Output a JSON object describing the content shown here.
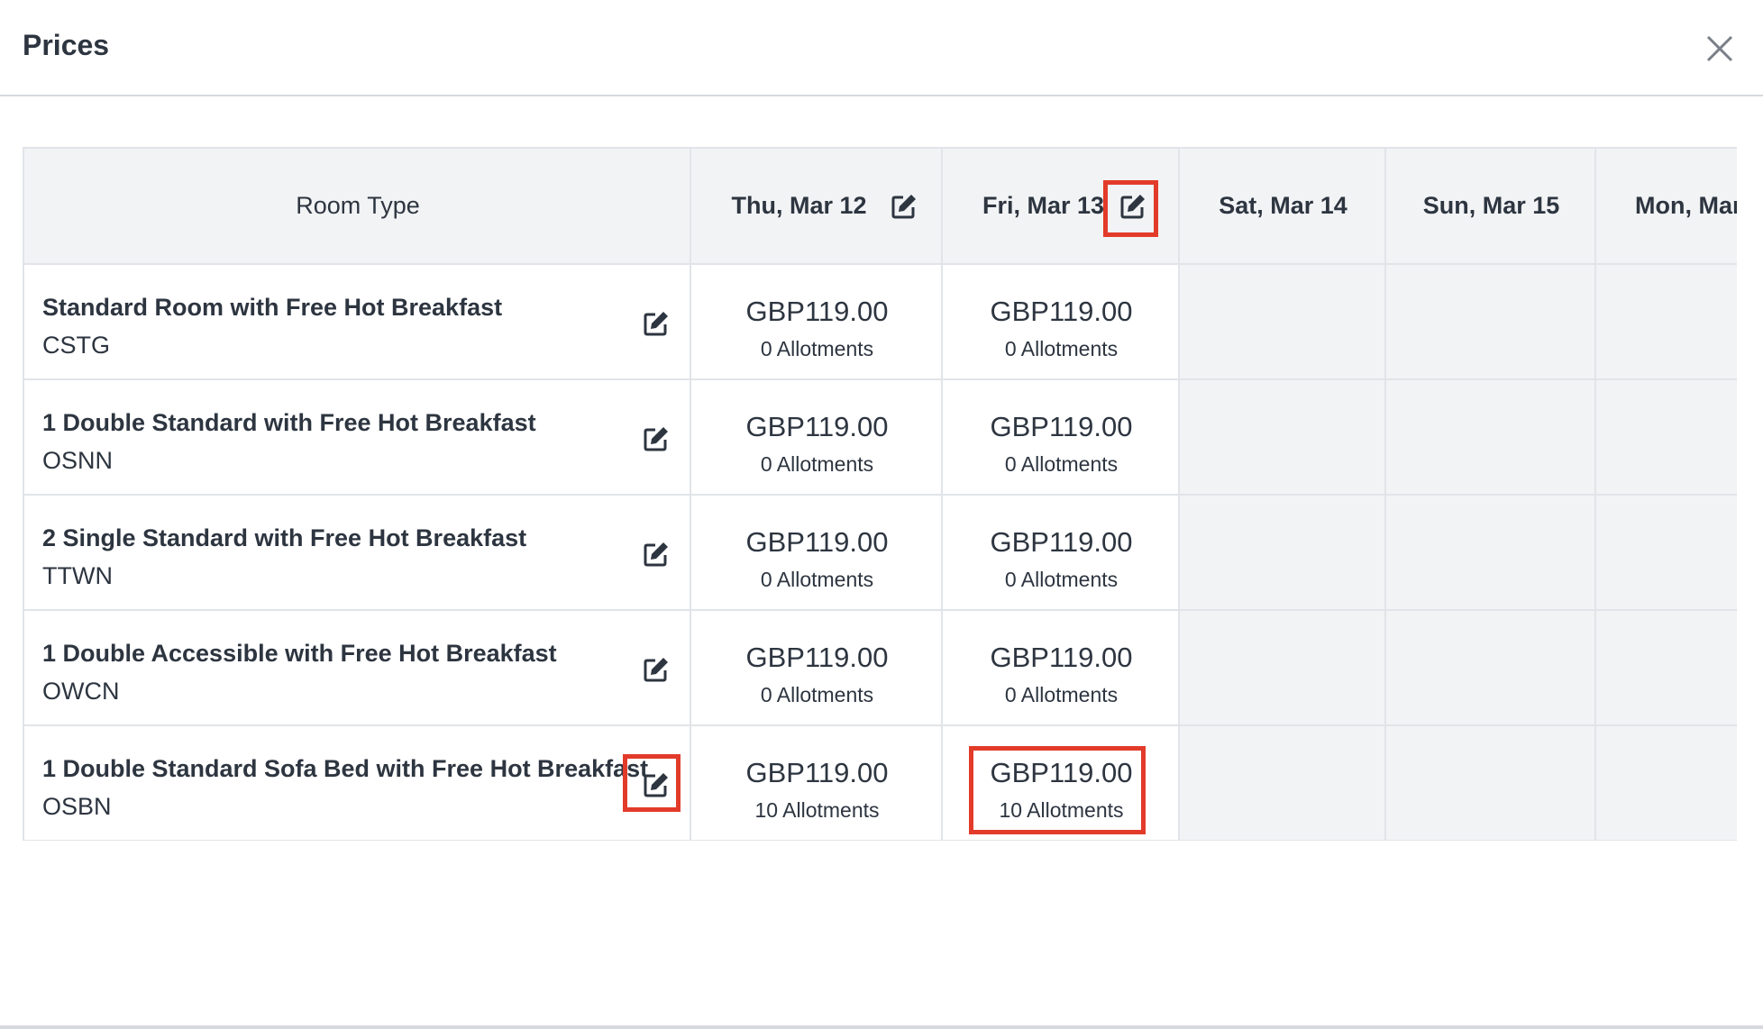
{
  "header": {
    "title": "Prices"
  },
  "table": {
    "columns": [
      "Room Type",
      "Thu, Mar 12",
      "Fri, Mar 13",
      "Sat, Mar 14",
      "Sun, Mar 15",
      "Mon, Mar"
    ],
    "rows": [
      {
        "name": "Standard Room with Free Hot Breakfast",
        "code": "CSTG",
        "rates": [
          {
            "price": "GBP119.00",
            "allotments": "0 Allotments"
          },
          {
            "price": "GBP119.00",
            "allotments": "0 Allotments"
          }
        ]
      },
      {
        "name": "1 Double Standard with Free Hot Breakfast",
        "code": "OSNN",
        "rates": [
          {
            "price": "GBP119.00",
            "allotments": "0 Allotments"
          },
          {
            "price": "GBP119.00",
            "allotments": "0 Allotments"
          }
        ]
      },
      {
        "name": "2 Single Standard with Free Hot Breakfast",
        "code": "TTWN",
        "rates": [
          {
            "price": "GBP119.00",
            "allotments": "0 Allotments"
          },
          {
            "price": "GBP119.00",
            "allotments": "0 Allotments"
          }
        ]
      },
      {
        "name": "1 Double Accessible with Free Hot Breakfast",
        "code": "OWCN",
        "rates": [
          {
            "price": "GBP119.00",
            "allotments": "0 Allotments"
          },
          {
            "price": "GBP119.00",
            "allotments": "0 Allotments"
          }
        ]
      },
      {
        "name": "1 Double Standard Sofa Bed with Free Hot Breakfast",
        "code": "OSBN",
        "rates": [
          {
            "price": "GBP119.00",
            "allotments": "10 Allotments"
          },
          {
            "price": "GBP119.00",
            "allotments": "10 Allotments"
          }
        ]
      }
    ]
  }
}
